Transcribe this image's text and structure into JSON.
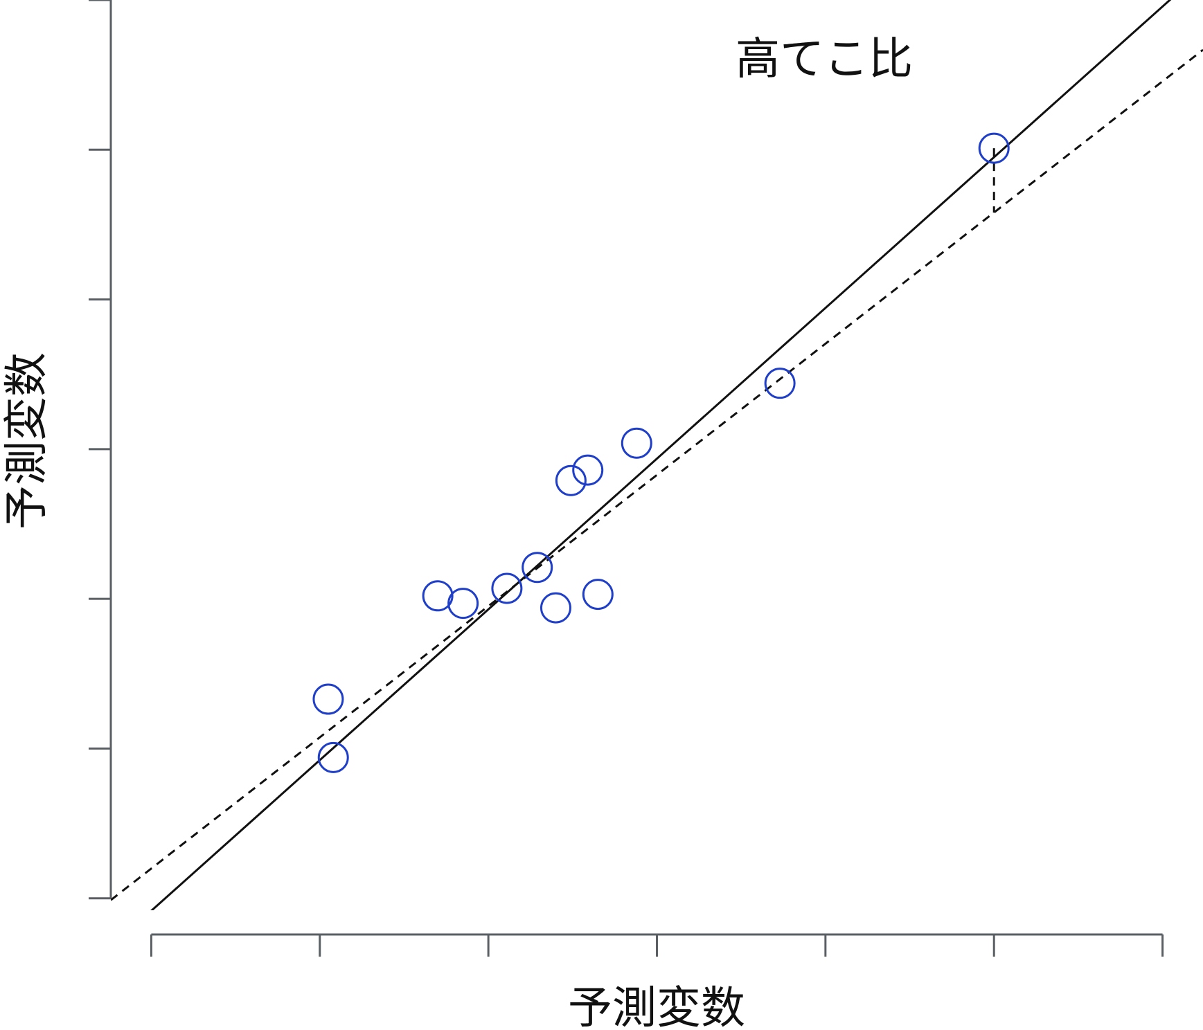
{
  "chart_data": {
    "type": "scatter",
    "title": "高てこ比",
    "xlabel": "予測変数",
    "ylabel": "予測変数",
    "x_ticks": [
      0,
      1,
      2,
      3,
      4,
      5,
      6
    ],
    "y_ticks": [
      0,
      1,
      2,
      3,
      4,
      5,
      6
    ],
    "xlim": [
      -0.24,
      6.24
    ],
    "ylim": [
      -0.08,
      6.0
    ],
    "points": [
      {
        "x": 1.05,
        "y": 1.33
      },
      {
        "x": 1.08,
        "y": 0.94
      },
      {
        "x": 1.7,
        "y": 2.02
      },
      {
        "x": 1.85,
        "y": 1.97
      },
      {
        "x": 2.11,
        "y": 2.07
      },
      {
        "x": 2.29,
        "y": 2.21
      },
      {
        "x": 2.4,
        "y": 1.94
      },
      {
        "x": 2.49,
        "y": 2.79
      },
      {
        "x": 2.59,
        "y": 2.86
      },
      {
        "x": 2.65,
        "y": 2.03
      },
      {
        "x": 2.88,
        "y": 3.04
      },
      {
        "x": 3.73,
        "y": 3.44
      },
      {
        "x": 5.0,
        "y": 5.01
      }
    ],
    "fit_all": {
      "style": "solid",
      "intercept": -0.0837,
      "slope": 1.0067
    },
    "fit_without_high_leverage": {
      "style": "dashed",
      "intercept": 0.1985,
      "slope": 0.8764
    },
    "residual_segment": {
      "x": 5.0,
      "y_from": 5.01,
      "y_to": 4.58
    },
    "colors": {
      "points": "#1f3fc8",
      "lines": "#111111",
      "axes": "#5a5f63"
    }
  }
}
